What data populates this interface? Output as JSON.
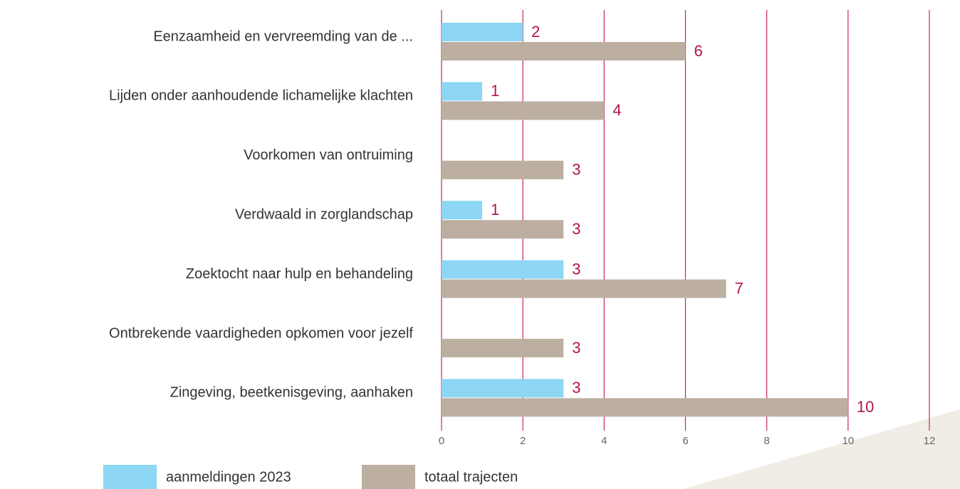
{
  "chart_data": {
    "type": "bar",
    "orientation": "horizontal",
    "categories": [
      "Eenzaamheid en vervreemding van de ...",
      "Lijden onder aanhoudende lichamelijke klachten",
      "Voorkomen van ontruiming",
      "Verdwaald in zorglandschap",
      "Zoektocht naar hulp en behandeling",
      "Ontbrekende vaardigheden opkomen voor jezelf",
      "Zingeving, beetkenisgeving, aanhaken"
    ],
    "series": [
      {
        "name": "aanmeldingen 2023",
        "color": "#8dd6f4",
        "values": [
          2,
          1,
          null,
          1,
          3,
          null,
          3
        ]
      },
      {
        "name": "totaal trajecten",
        "color": "#bcafa2",
        "values": [
          6,
          4,
          3,
          3,
          7,
          3,
          10
        ]
      }
    ],
    "xlim": [
      0,
      12
    ],
    "xticks": [
      0,
      2,
      4,
      6,
      8,
      10,
      12
    ],
    "grid": true,
    "grid_color": "#c8285a",
    "label_color": "#b0144e"
  }
}
